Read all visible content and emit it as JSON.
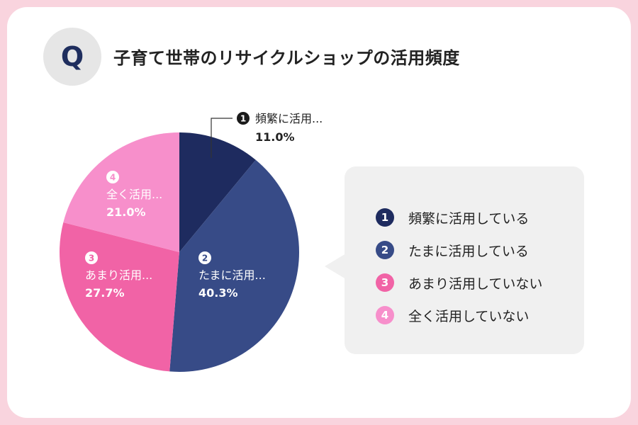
{
  "header": {
    "q_badge": "Q",
    "title": "子育て世帯のリサイクルショップの活用頻度"
  },
  "colors": {
    "slice1": "#1e2b5f",
    "slice2": "#374b87",
    "slice3": "#f163a6",
    "slice4": "#f78fcb"
  },
  "chart_data": {
    "type": "pie",
    "title": "子育て世帯のリサイクルショップの活用頻度",
    "legend_position": "right",
    "slices": [
      {
        "num": "1",
        "label": "頻繁に活用している",
        "short_label": "頻繁に活用...",
        "value": 11.0,
        "value_label": "11.0%"
      },
      {
        "num": "2",
        "label": "たまに活用している",
        "short_label": "たまに活用...",
        "value": 40.3,
        "value_label": "40.3%"
      },
      {
        "num": "3",
        "label": "あまり活用していない",
        "short_label": "あまり活用...",
        "value": 27.7,
        "value_label": "27.7%"
      },
      {
        "num": "4",
        "label": "全く活用していない",
        "short_label": "全く活用...",
        "value": 21.0,
        "value_label": "21.0%"
      }
    ]
  }
}
